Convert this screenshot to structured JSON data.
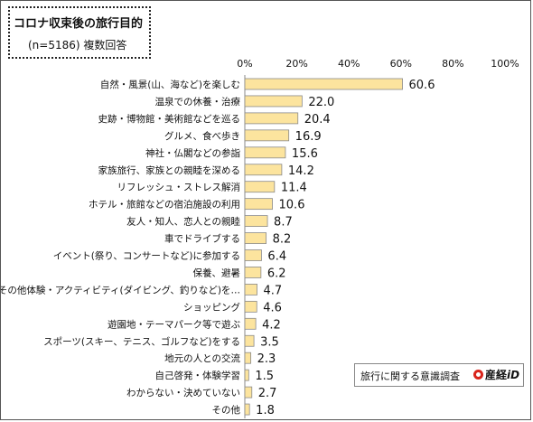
{
  "header": {
    "title": "コロナ収束後の旅行目的",
    "subtitle": "(n=5186)  複数回答"
  },
  "footer": {
    "source": "旅行に関する意識調査",
    "brand": "産経",
    "brand_suffix": "iD"
  },
  "colors": {
    "bar_fill": "#fce49e",
    "bar_stroke": "#8a8a8a",
    "brand_red": "#d9241b"
  },
  "chart_data": {
    "type": "bar",
    "orientation": "horizontal",
    "title": "コロナ収束後の旅行目的",
    "subtitle": "(n=5186)  複数回答",
    "xlim": [
      0,
      100
    ],
    "ticks": [
      "0%",
      "20%",
      "40%",
      "60%",
      "80%",
      "100%"
    ],
    "tick_values": [
      0,
      20,
      40,
      60,
      80,
      100
    ],
    "grid": false,
    "categories": [
      "自然・風景(山、海など)を楽しむ",
      "温泉での休養・治療",
      "史跡・博物館・美術館などを巡る",
      "グルメ、食べ歩き",
      "神社・仏閣などの参詣",
      "家族旅行、家族との親睦を深める",
      "リフレッシュ・ストレス解消",
      "ホテル・旅館などの宿泊施設の利用",
      "友人・知人、恋人との親睦",
      "車でドライブする",
      "イベント(祭り、コンサートなど)に参加する",
      "保養、避暑",
      "その他体験・アクティビティ(ダイビング、釣りなど)を…",
      "ショッピング",
      "遊園地・テーマパーク等で遊ぶ",
      "スポーツ(スキー、テニス、ゴルフなど)をする",
      "地元の人との交流",
      "自己啓発・体験学習",
      "わからない・決めていない",
      "その他"
    ],
    "values": [
      60.6,
      22.0,
      20.4,
      16.9,
      15.6,
      14.2,
      11.4,
      10.6,
      8.7,
      8.2,
      6.4,
      6.2,
      4.7,
      4.6,
      4.2,
      3.5,
      2.3,
      1.5,
      2.7,
      1.8
    ],
    "value_labels": [
      "60.6",
      "22.0",
      "20.4",
      "16.9",
      "15.6",
      "14.2",
      "11.4",
      "10.6",
      "8.7",
      "8.2",
      "6.4",
      "6.2",
      "4.7",
      "4.6",
      "4.2",
      "3.5",
      "2.3",
      "1.5",
      "2.7",
      "1.8"
    ]
  }
}
